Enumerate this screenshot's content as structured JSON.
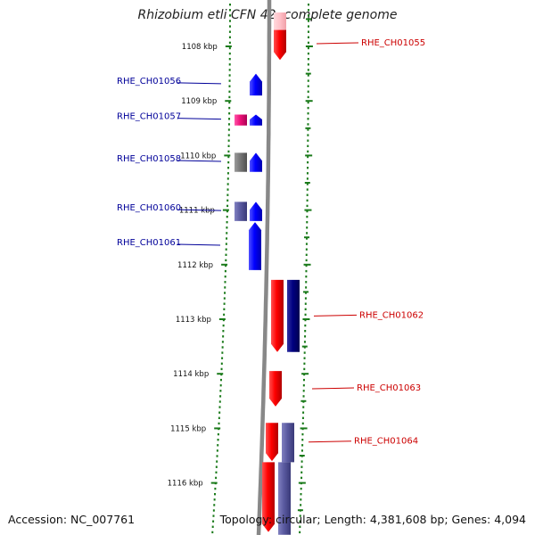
{
  "title": "Rhizobium etli CFN 42, complete genome",
  "footer": {
    "accession": "Accession: NC_007761",
    "summary": "Topology: circular; Length: 4,381,608 bp; Genes: 4,094"
  },
  "colors": {
    "forward_cds": "#ff0000",
    "reverse_cds": "#0000ff",
    "forward_label": "#cc0000",
    "reverse_label": "#000099",
    "navy_feature": "#000080",
    "slate_feature": "#5a5aa0",
    "gray_feature": "#777777",
    "magenta_feature": "#ee1177",
    "pink_feature": "#ffc0c8",
    "backbone": "#888888",
    "ruler": "#1a7a1a"
  },
  "scale": {
    "unit": "kbp",
    "ticks": [
      {
        "kbp": 1108,
        "label": "1108 kbp"
      },
      {
        "kbp": 1109,
        "label": "1109 kbp"
      },
      {
        "kbp": 1110,
        "label": "1110 kbp"
      },
      {
        "kbp": 1111,
        "label": "1111 kbp"
      },
      {
        "kbp": 1112,
        "label": "1112 kbp"
      },
      {
        "kbp": 1113,
        "label": "1113 kbp"
      },
      {
        "kbp": 1114,
        "label": "1114 kbp"
      },
      {
        "kbp": 1115,
        "label": "1115 kbp"
      },
      {
        "kbp": 1116,
        "label": "1116 kbp"
      }
    ]
  },
  "genes": [
    {
      "label": "RHE_CH01055",
      "strand": "forward",
      "start_kbp": 1107.65,
      "end_kbp": 1108.25
    },
    {
      "label": "RHE_CH01056",
      "strand": "reverse",
      "start_kbp": 1108.5,
      "end_kbp": 1108.9
    },
    {
      "label": "RHE_CH01057",
      "strand": "reverse",
      "start_kbp": 1109.25,
      "end_kbp": 1109.45
    },
    {
      "label": "RHE_CH01058",
      "strand": "reverse",
      "start_kbp": 1109.95,
      "end_kbp": 1110.3
    },
    {
      "label": "RHE_CH01060",
      "strand": "reverse",
      "start_kbp": 1110.85,
      "end_kbp": 1111.2
    },
    {
      "label": "RHE_CH01061",
      "strand": "reverse",
      "start_kbp": 1111.22,
      "end_kbp": 1112.1
    },
    {
      "label": "RHE_CH01062",
      "strand": "forward",
      "start_kbp": 1112.28,
      "end_kbp": 1113.6
    },
    {
      "label": "RHE_CH01063",
      "strand": "forward",
      "start_kbp": 1113.95,
      "end_kbp": 1114.6
    },
    {
      "label": "RHE_CH01064",
      "strand": "forward",
      "start_kbp": 1114.9,
      "end_kbp": 1115.6
    },
    {
      "label": "",
      "strand": "forward",
      "start_kbp": 1115.62,
      "end_kbp": 1116.9
    }
  ]
}
